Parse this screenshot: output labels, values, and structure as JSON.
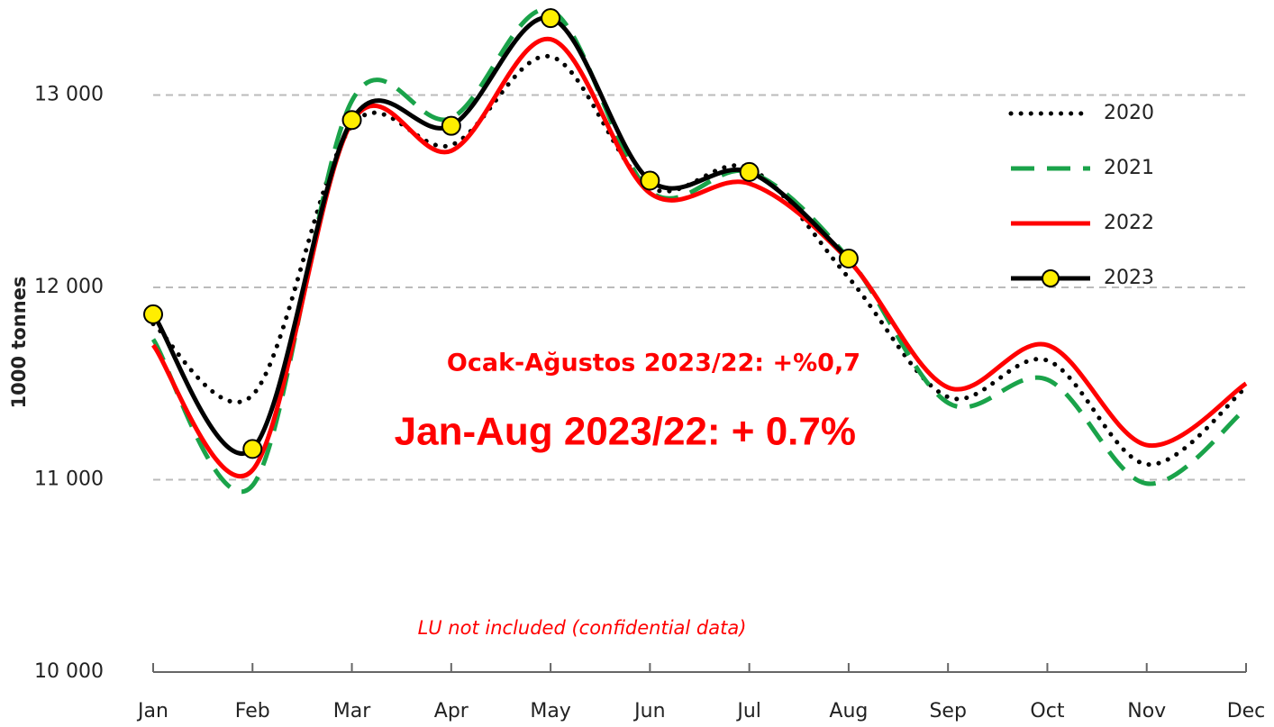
{
  "chart_data": {
    "type": "line",
    "y_label": "1000 tonnes",
    "categories": [
      "Jan",
      "Feb",
      "Mar",
      "Apr",
      "May",
      "Jun",
      "Jul",
      "Aug",
      "Sep",
      "Oct",
      "Nov",
      "Dec"
    ],
    "series": [
      {
        "name": "2020",
        "color": "#000000",
        "style": "dotted",
        "values": [
          11810,
          11440,
          12840,
          12740,
          13200,
          12520,
          12620,
          12050,
          11430,
          11620,
          11080,
          11480
        ]
      },
      {
        "name": "2021",
        "color": "#1aa34a",
        "style": "dashed",
        "values": [
          11730,
          10970,
          12970,
          12880,
          13440,
          12500,
          12600,
          12150,
          11400,
          11520,
          10980,
          11370
        ]
      },
      {
        "name": "2022",
        "color": "#ff0000",
        "style": "solid",
        "values": [
          11700,
          11050,
          12860,
          12710,
          13290,
          12490,
          12540,
          12140,
          11480,
          11700,
          11180,
          11500
        ]
      },
      {
        "name": "2023",
        "color": "#000000",
        "style": "solid-markers",
        "marker_color": "#ffee00",
        "values": [
          11860,
          11160,
          12870,
          12840,
          13400,
          12555,
          12600,
          12150,
          null,
          null,
          null,
          null
        ]
      }
    ],
    "ylim": [
      10000,
      13500
    ],
    "yticks": [
      {
        "value": 10000,
        "label": "10 000"
      },
      {
        "value": 11000,
        "label": "11 000"
      },
      {
        "value": 12000,
        "label": "12 000"
      },
      {
        "value": 13000,
        "label": "13 000"
      }
    ],
    "grid": true,
    "legend": "upper right",
    "annotations": [
      "Ocak-Ağustos 2023/22: +%0,7",
      "Jan-Aug 2023/22: + 0.7%",
      "LU not included (confidential data)"
    ]
  }
}
